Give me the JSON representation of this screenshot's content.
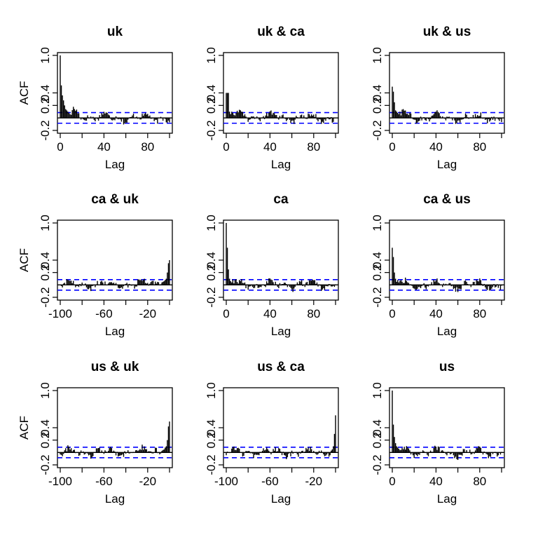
{
  "chart_data": [
    {
      "type": "bar",
      "title": "uk",
      "xlabel": "Lag",
      "ylabel": "ACF",
      "xlim": [
        0,
        100
      ],
      "ylim": [
        -0.2,
        1.0
      ],
      "xticks": [
        "0",
        "40",
        "80"
      ],
      "yticks": [
        "-0.2",
        "0.2",
        "0.4",
        "1.0"
      ],
      "ci": 0.085,
      "profile": "auto",
      "peak": 1.0,
      "decay": 0.14,
      "lags": [
        0,
        1,
        2,
        3,
        4,
        5,
        6,
        7,
        8,
        9,
        10
      ],
      "acf": [
        1.0,
        0.52,
        0.36,
        0.28,
        0.2,
        0.14,
        0.12,
        0.1,
        0.08,
        0.06,
        0.05
      ]
    },
    {
      "type": "bar",
      "title": "uk & ca",
      "xlabel": "Lag",
      "ylabel": "",
      "xlim": [
        0,
        100
      ],
      "ylim": [
        -0.2,
        1.0
      ],
      "xticks": [
        "0",
        "40",
        "80"
      ],
      "yticks": [
        "-0.2",
        "0.2",
        "0.4",
        "1.0"
      ],
      "ci": 0.085,
      "profile": "cross-pos",
      "peak": 0.4,
      "decay": 0.12,
      "lags": [
        0,
        1,
        2,
        3,
        4,
        5,
        6,
        7,
        8
      ],
      "acf": [
        0.4,
        0.4,
        0.4,
        0.1,
        0.06,
        0.1,
        0.08,
        0.05,
        0.04
      ]
    },
    {
      "type": "bar",
      "title": "uk & us",
      "xlabel": "Lag",
      "ylabel": "",
      "xlim": [
        0,
        100
      ],
      "ylim": [
        -0.2,
        1.0
      ],
      "xticks": [
        "0",
        "40",
        "80"
      ],
      "yticks": [
        "-0.2",
        "0.2",
        "0.4",
        "1.0"
      ],
      "ci": 0.085,
      "profile": "cross-pos",
      "peak": 0.5,
      "decay": 0.18,
      "lags": [
        0,
        1,
        2,
        3,
        4,
        5,
        6,
        7,
        8
      ],
      "acf": [
        0.5,
        0.42,
        0.25,
        0.12,
        0.1,
        0.08,
        0.06,
        0.1,
        0.04
      ]
    },
    {
      "type": "bar",
      "title": "ca & uk",
      "xlabel": "Lag",
      "ylabel": "ACF",
      "xlim": [
        -100,
        0
      ],
      "ylim": [
        -0.2,
        1.0
      ],
      "xticks": [
        "-100",
        "-60",
        "-20"
      ],
      "yticks": [
        "-0.2",
        "0.2",
        "0.4",
        "1.0"
      ],
      "ci": 0.085,
      "profile": "cross-neg",
      "peak": 0.4,
      "decay": 0.18,
      "lags": [
        0,
        -1,
        -2,
        -3,
        -4,
        -5,
        -6,
        -7
      ],
      "acf": [
        0.4,
        0.35,
        0.2,
        0.1,
        0.08,
        0.06,
        0.05,
        0.04
      ]
    },
    {
      "type": "bar",
      "title": "ca",
      "xlabel": "Lag",
      "ylabel": "",
      "xlim": [
        0,
        100
      ],
      "ylim": [
        -0.2,
        1.0
      ],
      "xticks": [
        "0",
        "40",
        "80"
      ],
      "yticks": [
        "-0.2",
        "0.2",
        "0.4",
        "1.0"
      ],
      "ci": 0.085,
      "profile": "auto",
      "peak": 1.0,
      "decay": 0.4,
      "lags": [
        0,
        1,
        2,
        3,
        4,
        5
      ],
      "acf": [
        1.0,
        0.6,
        0.25,
        0.1,
        0.06,
        0.04
      ]
    },
    {
      "type": "bar",
      "title": "ca & us",
      "xlabel": "Lag",
      "ylabel": "",
      "xlim": [
        0,
        100
      ],
      "ylim": [
        -0.2,
        1.0
      ],
      "xticks": [
        "0",
        "40",
        "80"
      ],
      "yticks": [
        "-0.2",
        "0.2",
        "0.4",
        "1.0"
      ],
      "ci": 0.085,
      "profile": "cross-pos",
      "peak": 0.6,
      "decay": 0.3,
      "lags": [
        0,
        1,
        2,
        3,
        4,
        5,
        6
      ],
      "acf": [
        0.6,
        0.45,
        0.2,
        0.1,
        0.05,
        0.08,
        0.04
      ]
    },
    {
      "type": "bar",
      "title": "us & uk",
      "xlabel": "Lag",
      "ylabel": "ACF",
      "xlim": [
        -100,
        0
      ],
      "ylim": [
        -0.2,
        1.0
      ],
      "xticks": [
        "-100",
        "-60",
        "-20"
      ],
      "yticks": [
        "-0.2",
        "0.2",
        "0.4",
        "1.0"
      ],
      "ci": 0.085,
      "profile": "cross-neg",
      "peak": 0.5,
      "decay": 0.22,
      "lags": [
        0,
        -1,
        -2,
        -3,
        -4,
        -5,
        -6
      ],
      "acf": [
        0.5,
        0.42,
        0.2,
        0.1,
        0.08,
        0.05,
        0.04
      ]
    },
    {
      "type": "bar",
      "title": "us & ca",
      "xlabel": "Lag",
      "ylabel": "",
      "xlim": [
        -100,
        0
      ],
      "ylim": [
        -0.2,
        1.0
      ],
      "xticks": [
        "-100",
        "-60",
        "-20"
      ],
      "yticks": [
        "-0.2",
        "0.2",
        "0.4",
        "1.0"
      ],
      "ci": 0.085,
      "profile": "cross-neg",
      "peak": 0.6,
      "decay": 0.5,
      "lags": [
        0,
        -1,
        -2,
        -3,
        -4
      ],
      "acf": [
        0.6,
        0.3,
        0.1,
        0.05,
        0.03
      ]
    },
    {
      "type": "bar",
      "title": "us",
      "xlabel": "Lag",
      "ylabel": "",
      "xlim": [
        0,
        100
      ],
      "ylim": [
        -0.2,
        1.0
      ],
      "xticks": [
        "0",
        "40",
        "80"
      ],
      "yticks": [
        "-0.2",
        "0.2",
        "0.4",
        "1.0"
      ],
      "ci": 0.085,
      "profile": "auto",
      "peak": 1.0,
      "decay": 0.3,
      "lags": [
        0,
        1,
        2,
        3,
        4,
        5,
        6,
        7
      ],
      "acf": [
        1.0,
        0.45,
        0.25,
        0.15,
        0.1,
        0.08,
        0.06,
        0.04
      ]
    }
  ],
  "colors": {
    "bars": "#000000",
    "ci": "#0000ff",
    "zero": "#000000",
    "axis": "#000000"
  }
}
